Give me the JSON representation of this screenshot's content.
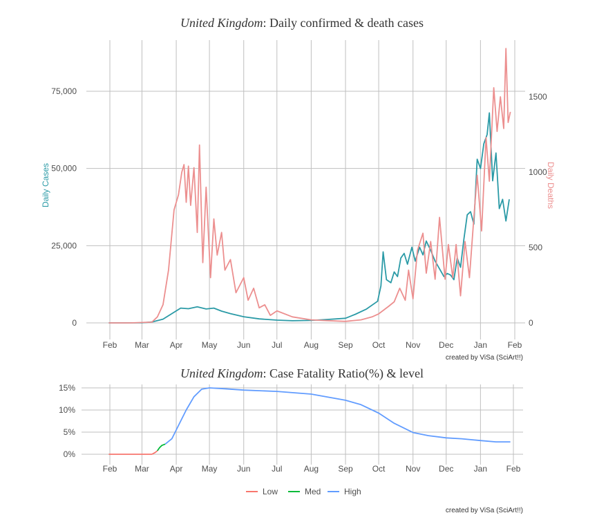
{
  "chart_data": [
    {
      "type": "line",
      "title_italic": "United Kingdom",
      "title_rest": ": Daily confirmed & death cases",
      "ylabel": "Daily Cases",
      "ylabel_right": "Daily Deaths",
      "credit": "created by ViSa (SciArt!!)",
      "x_tick_labels": [
        "Feb",
        "Mar",
        "Apr",
        "May",
        "Jun",
        "Jul",
        "Aug",
        "Sep",
        "Oct",
        "Nov",
        "Dec",
        "Jan",
        "Feb"
      ],
      "x_tick_dates": [
        "2020-02-01",
        "2020-03-01",
        "2020-04-01",
        "2020-05-01",
        "2020-06-01",
        "2020-07-01",
        "2020-08-01",
        "2020-09-01",
        "2020-10-01",
        "2020-11-01",
        "2020-12-01",
        "2021-01-01",
        "2021-02-01"
      ],
      "xlim": [
        "2020-01-20",
        "2021-02-05"
      ],
      "y_ticks": [
        0,
        25000,
        50000,
        75000
      ],
      "y_tick_labels": [
        "0",
        "25,000",
        "50,000",
        "75,000"
      ],
      "ylim": [
        -7000,
        95000
      ],
      "y2_ticks": [
        0,
        500,
        1000,
        1500
      ],
      "y2_tick_labels": [
        "0",
        "500",
        "1000",
        "1500"
      ],
      "y2lim": [
        -160,
        2050
      ],
      "grid": true,
      "series": [
        {
          "name": "Daily Cases",
          "axis": "left",
          "color": "#2a9aa6",
          "points": [
            [
              "2020-01-31",
              0
            ],
            [
              "2020-02-15",
              10
            ],
            [
              "2020-03-01",
              30
            ],
            [
              "2020-03-10",
              300
            ],
            [
              "2020-03-20",
              1200
            ],
            [
              "2020-03-28",
              3000
            ],
            [
              "2020-04-05",
              4800
            ],
            [
              "2020-04-12",
              4600
            ],
            [
              "2020-04-20",
              5200
            ],
            [
              "2020-04-28",
              4500
            ],
            [
              "2020-05-05",
              4800
            ],
            [
              "2020-05-12",
              3800
            ],
            [
              "2020-05-20",
              3000
            ],
            [
              "2020-06-01",
              2000
            ],
            [
              "2020-06-15",
              1300
            ],
            [
              "2020-07-01",
              900
            ],
            [
              "2020-07-15",
              700
            ],
            [
              "2020-08-01",
              800
            ],
            [
              "2020-08-15",
              1100
            ],
            [
              "2020-09-01",
              1500
            ],
            [
              "2020-09-10",
              2800
            ],
            [
              "2020-09-20",
              4500
            ],
            [
              "2020-09-30",
              7000
            ],
            [
              "2020-10-03",
              12000
            ],
            [
              "2020-10-05",
              23000
            ],
            [
              "2020-10-08",
              14000
            ],
            [
              "2020-10-12",
              13000
            ],
            [
              "2020-10-15",
              16500
            ],
            [
              "2020-10-18",
              15000
            ],
            [
              "2020-10-21",
              21000
            ],
            [
              "2020-10-24",
              22500
            ],
            [
              "2020-10-27",
              19000
            ],
            [
              "2020-10-31",
              24500
            ],
            [
              "2020-11-03",
              20000
            ],
            [
              "2020-11-07",
              24500
            ],
            [
              "2020-11-10",
              22000
            ],
            [
              "2020-11-13",
              26500
            ],
            [
              "2020-11-17",
              23500
            ],
            [
              "2020-11-21",
              20000
            ],
            [
              "2020-11-25",
              17500
            ],
            [
              "2020-11-29",
              15000
            ],
            [
              "2020-12-02",
              16000
            ],
            [
              "2020-12-05",
              15500
            ],
            [
              "2020-12-08",
              14000
            ],
            [
              "2020-12-11",
              21000
            ],
            [
              "2020-12-14",
              18000
            ],
            [
              "2020-12-17",
              27000
            ],
            [
              "2020-12-20",
              35000
            ],
            [
              "2020-12-23",
              36000
            ],
            [
              "2020-12-26",
              32000
            ],
            [
              "2020-12-29",
              53000
            ],
            [
              "2021-01-01",
              50000
            ],
            [
              "2021-01-04",
              58000
            ],
            [
              "2021-01-07",
              61000
            ],
            [
              "2021-01-09",
              68000
            ],
            [
              "2021-01-12",
              46000
            ],
            [
              "2021-01-15",
              55000
            ],
            [
              "2021-01-18",
              37000
            ],
            [
              "2021-01-21",
              40000
            ],
            [
              "2021-01-24",
              33000
            ],
            [
              "2021-01-27",
              40000
            ]
          ]
        },
        {
          "name": "Daily Deaths",
          "axis": "right",
          "color": "#ec8f8f",
          "points": [
            [
              "2020-01-31",
              0
            ],
            [
              "2020-02-20",
              0
            ],
            [
              "2020-03-10",
              5
            ],
            [
              "2020-03-15",
              40
            ],
            [
              "2020-03-20",
              120
            ],
            [
              "2020-03-25",
              350
            ],
            [
              "2020-03-30",
              750
            ],
            [
              "2020-04-03",
              850
            ],
            [
              "2020-04-06",
              1000
            ],
            [
              "2020-04-08",
              1050
            ],
            [
              "2020-04-10",
              800
            ],
            [
              "2020-04-12",
              1040
            ],
            [
              "2020-04-14",
              780
            ],
            [
              "2020-04-17",
              1030
            ],
            [
              "2020-04-20",
              600
            ],
            [
              "2020-04-22",
              1180
            ],
            [
              "2020-04-25",
              400
            ],
            [
              "2020-04-28",
              900
            ],
            [
              "2020-05-02",
              300
            ],
            [
              "2020-05-05",
              690
            ],
            [
              "2020-05-08",
              450
            ],
            [
              "2020-05-12",
              600
            ],
            [
              "2020-05-15",
              350
            ],
            [
              "2020-05-20",
              420
            ],
            [
              "2020-05-25",
              200
            ],
            [
              "2020-06-01",
              300
            ],
            [
              "2020-06-05",
              150
            ],
            [
              "2020-06-10",
              230
            ],
            [
              "2020-06-15",
              100
            ],
            [
              "2020-06-20",
              120
            ],
            [
              "2020-06-25",
              50
            ],
            [
              "2020-07-01",
              80
            ],
            [
              "2020-07-15",
              40
            ],
            [
              "2020-08-01",
              20
            ],
            [
              "2020-08-15",
              15
            ],
            [
              "2020-09-01",
              10
            ],
            [
              "2020-09-15",
              20
            ],
            [
              "2020-09-25",
              40
            ],
            [
              "2020-10-01",
              60
            ],
            [
              "2020-10-10",
              110
            ],
            [
              "2020-10-15",
              140
            ],
            [
              "2020-10-20",
              230
            ],
            [
              "2020-10-25",
              150
            ],
            [
              "2020-10-28",
              350
            ],
            [
              "2020-11-01",
              160
            ],
            [
              "2020-11-05",
              480
            ],
            [
              "2020-11-10",
              595
            ],
            [
              "2020-11-13",
              330
            ],
            [
              "2020-11-17",
              540
            ],
            [
              "2020-11-21",
              290
            ],
            [
              "2020-11-25",
              700
            ],
            [
              "2020-11-30",
              290
            ],
            [
              "2020-12-03",
              520
            ],
            [
              "2020-12-07",
              300
            ],
            [
              "2020-12-10",
              520
            ],
            [
              "2020-12-14",
              180
            ],
            [
              "2020-12-18",
              540
            ],
            [
              "2020-12-22",
              300
            ],
            [
              "2020-12-26",
              700
            ],
            [
              "2020-12-29",
              980
            ],
            [
              "2021-01-02",
              610
            ],
            [
              "2021-01-06",
              1230
            ],
            [
              "2021-01-09",
              940
            ],
            [
              "2021-01-13",
              1560
            ],
            [
              "2021-01-16",
              1270
            ],
            [
              "2021-01-19",
              1500
            ],
            [
              "2021-01-22",
              1290
            ],
            [
              "2021-01-24",
              1820
            ],
            [
              "2021-01-26",
              1330
            ],
            [
              "2021-01-28",
              1400
            ]
          ]
        }
      ]
    },
    {
      "type": "line",
      "title_italic": "United Kingdom",
      "title_rest": ": Case Fatality Ratio(%) & level",
      "credit": "created by ViSa (SciArt!!)",
      "x_tick_labels": [
        "Feb",
        "Mar",
        "Apr",
        "May",
        "Jun",
        "Jul",
        "Aug",
        "Sep",
        "Oct",
        "Nov",
        "Dec",
        "Jan",
        "Feb"
      ],
      "y_ticks": [
        0,
        5,
        10,
        15
      ],
      "y_tick_labels": [
        "0%",
        "5%",
        "10%",
        "15%"
      ],
      "ylim": [
        -0.5,
        15.8
      ],
      "grid": true,
      "legend_position": "bottom",
      "legend": [
        {
          "label": "Low",
          "color": "#f8766d"
        },
        {
          "label": "Med",
          "color": "#00ba38"
        },
        {
          "label": "High",
          "color": "#619cff"
        }
      ],
      "series": [
        {
          "name": "Low",
          "color": "#f8766d",
          "points": [
            [
              "2020-01-31",
              0
            ],
            [
              "2020-02-20",
              0
            ],
            [
              "2020-03-10",
              0
            ],
            [
              "2020-03-13",
              0.4
            ],
            [
              "2020-03-15",
              0.8
            ]
          ]
        },
        {
          "name": "Med",
          "color": "#00ba38",
          "points": [
            [
              "2020-03-15",
              0.8
            ],
            [
              "2020-03-17",
              1.5
            ],
            [
              "2020-03-19",
              2.0
            ],
            [
              "2020-03-22",
              2.3
            ]
          ]
        },
        {
          "name": "High",
          "color": "#619cff",
          "points": [
            [
              "2020-03-22",
              2.3
            ],
            [
              "2020-03-28",
              3.5
            ],
            [
              "2020-04-03",
              6.5
            ],
            [
              "2020-04-10",
              10.0
            ],
            [
              "2020-04-17",
              13.0
            ],
            [
              "2020-04-24",
              14.7
            ],
            [
              "2020-05-01",
              15.0
            ],
            [
              "2020-05-15",
              14.8
            ],
            [
              "2020-06-01",
              14.5
            ],
            [
              "2020-07-01",
              14.2
            ],
            [
              "2020-08-01",
              13.6
            ],
            [
              "2020-09-01",
              12.2
            ],
            [
              "2020-09-15",
              11.2
            ],
            [
              "2020-10-01",
              9.3
            ],
            [
              "2020-10-15",
              7.0
            ],
            [
              "2020-11-01",
              4.9
            ],
            [
              "2020-11-15",
              4.2
            ],
            [
              "2020-12-01",
              3.7
            ],
            [
              "2020-12-15",
              3.5
            ],
            [
              "2021-01-01",
              3.1
            ],
            [
              "2021-01-15",
              2.8
            ],
            [
              "2021-01-28",
              2.8
            ]
          ]
        }
      ]
    }
  ]
}
